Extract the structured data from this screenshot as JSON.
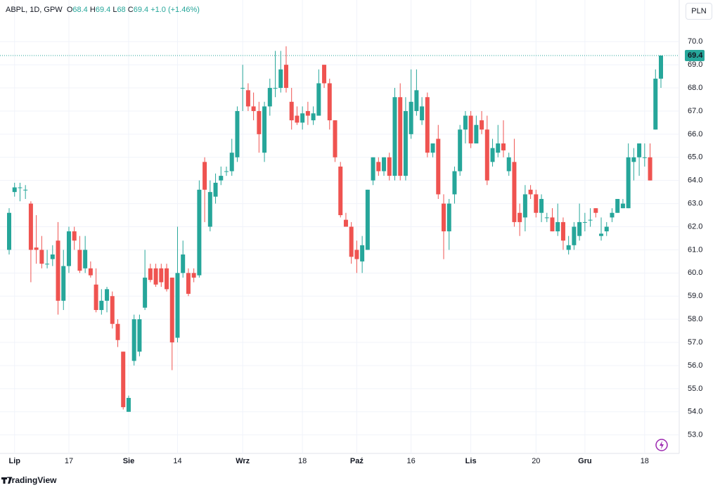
{
  "chart_data": {
    "type": "candlestick",
    "symbol": "ABPL, 1D, GPW",
    "ohlc_labels": [
      "O",
      "H",
      "L",
      "C"
    ],
    "ohlc_values": [
      68.4,
      69.4,
      68.0,
      69.4
    ],
    "change": "+1.0 (+1.46%)",
    "currency": "PLN",
    "brand": "TradingView",
    "last_price": 69.4,
    "up_color": "#26a69a",
    "down_color": "#ef5350",
    "grid": true,
    "categories": [
      null,
      "Lip",
      null,
      null,
      null,
      null,
      null,
      null,
      null,
      null,
      null,
      "17",
      null,
      null,
      null,
      null,
      null,
      null,
      null,
      null,
      null,
      null,
      "Sie",
      null,
      null,
      null,
      null,
      null,
      null,
      null,
      null,
      "14",
      null,
      null,
      null,
      null,
      null,
      null,
      null,
      null,
      null,
      null,
      null,
      "Wrz",
      null,
      null,
      null,
      null,
      null,
      null,
      null,
      null,
      null,
      null,
      "18",
      null,
      null,
      null,
      null,
      null,
      null,
      null,
      null,
      null,
      "Paź",
      null,
      null,
      null,
      null,
      null,
      null,
      null,
      null,
      null,
      "16",
      null,
      null,
      null,
      null,
      null,
      null,
      null,
      null,
      null,
      null,
      "Lis",
      null,
      null,
      null,
      null,
      null,
      null,
      null,
      null,
      null,
      null,
      null,
      "20",
      null,
      null,
      null,
      null,
      null,
      null,
      null,
      null,
      "Gru",
      null,
      null,
      null,
      null,
      null,
      null,
      null,
      null,
      null,
      null,
      "18",
      null,
      null,
      null
    ],
    "open": [
      61.0,
      63.5,
      63.7,
      63.6,
      63.0,
      61.1,
      61.0,
      60.4,
      60.6,
      61.4,
      58.8,
      60.3,
      61.8,
      61.0,
      60.2,
      60.2,
      59.5,
      58.4,
      58.8,
      59.0,
      57.8,
      56.6,
      54.0,
      56.2,
      56.6,
      58.5,
      60.2,
      60.2,
      60.2,
      60.2,
      59.8,
      57.2,
      60.0,
      60.0,
      60.0,
      59.9,
      64.8,
      62.0,
      63.3,
      64.0,
      64.4,
      64.4,
      65.0,
      68.0,
      67.9,
      67.2,
      67.0,
      65.2,
      67.2,
      68.0,
      68.0,
      69.0,
      67.4,
      66.8,
      66.5,
      67.0,
      66.6,
      66.8,
      69.0,
      68.2,
      66.6,
      64.6,
      62.3,
      62.0,
      61.0,
      60.5,
      61.0,
      64.0,
      64.8,
      64.4,
      65.0,
      64.2,
      67.6,
      64.2,
      66.0,
      67.0,
      66.6,
      67.6,
      65.2,
      65.8,
      63.0,
      61.8,
      63.4,
      64.4,
      66.2,
      66.8,
      65.6,
      66.6,
      66.2,
      64.8,
      65.2,
      65.6,
      64.4,
      64.8,
      62.6,
      62.4,
      63.6,
      63.4,
      62.6,
      62.4,
      62.4,
      61.8,
      62.2,
      61.0,
      61.2,
      61.6,
      62.2,
      62.3,
      62.8,
      61.6,
      61.8,
      62.4,
      62.6,
      62.8,
      62.8,
      64.8,
      65.0,
      65.0,
      65.0,
      66.2,
      68.4
    ],
    "high": [
      62.8,
      63.9,
      63.9,
      63.8,
      63.1,
      62.5,
      61.6,
      61.0,
      61.2,
      62.2,
      61.0,
      62.0,
      62.0,
      61.6,
      61.6,
      60.5,
      60.2,
      59.3,
      59.4,
      59.2,
      58.0,
      56.6,
      54.7,
      58.2,
      58.2,
      61.0,
      60.4,
      60.4,
      60.4,
      60.4,
      59.8,
      62.0,
      61.4,
      60.2,
      60.2,
      64.0,
      65.0,
      64.0,
      64.3,
      64.6,
      64.6,
      65.8,
      67.2,
      69.0,
      68.2,
      67.8,
      67.4,
      67.4,
      68.4,
      69.6,
      69.6,
      69.8,
      68.0,
      67.2,
      67.2,
      67.4,
      67.2,
      68.8,
      69.0,
      68.4,
      66.6,
      64.8,
      62.6,
      62.2,
      61.4,
      61.6,
      63.6,
      65.0,
      65.0,
      65.0,
      65.2,
      68.0,
      68.2,
      67.6,
      68.8,
      68.8,
      67.6,
      67.8,
      65.6,
      66.4,
      63.4,
      63.2,
      64.6,
      66.4,
      67.0,
      67.0,
      66.8,
      67.0,
      66.8,
      65.8,
      66.4,
      66.6,
      65.2,
      65.8,
      63.0,
      63.8,
      63.8,
      63.6,
      63.4,
      62.6,
      62.8,
      63.0,
      62.4,
      61.6,
      62.2,
      63.0,
      62.6,
      62.8,
      62.8,
      62.4,
      62.2,
      62.8,
      63.2,
      63.2,
      65.6,
      65.4,
      65.6,
      65.6,
      65.6,
      68.8,
      69.4
    ],
    "low": [
      60.8,
      63.3,
      63.1,
      63.2,
      59.6,
      60.4,
      60.2,
      60.2,
      60.3,
      58.2,
      58.4,
      60.0,
      61.0,
      60.0,
      60.0,
      59.8,
      58.3,
      58.2,
      58.3,
      57.6,
      56.8,
      54.1,
      54.0,
      56.0,
      56.4,
      58.4,
      59.6,
      59.4,
      59.4,
      59.2,
      55.8,
      57.0,
      59.8,
      59.0,
      59.6,
      59.8,
      62.2,
      61.8,
      63.0,
      63.8,
      64.2,
      64.2,
      64.8,
      67.0,
      67.0,
      66.6,
      65.2,
      64.8,
      66.8,
      67.6,
      67.8,
      67.8,
      66.2,
      66.4,
      66.2,
      66.4,
      66.4,
      66.8,
      68.0,
      66.2,
      64.8,
      62.4,
      62.0,
      60.4,
      60.0,
      60.0,
      61.0,
      63.8,
      64.2,
      64.2,
      64.0,
      64.0,
      64.0,
      64.0,
      65.8,
      66.8,
      66.4,
      65.0,
      65.0,
      63.2,
      60.6,
      61.0,
      63.0,
      64.2,
      65.6,
      65.4,
      65.6,
      66.0,
      63.8,
      64.6,
      65.0,
      65.0,
      64.2,
      62.0,
      61.6,
      61.8,
      63.2,
      62.4,
      62.2,
      62.2,
      61.8,
      61.6,
      61.0,
      60.8,
      61.0,
      61.4,
      61.8,
      62.0,
      62.4,
      61.4,
      61.6,
      62.2,
      62.6,
      62.8,
      62.8,
      64.0,
      64.2,
      64.6,
      64.0,
      66.2,
      68.0
    ],
    "close": [
      62.6,
      63.7,
      63.7,
      63.6,
      61.0,
      61.0,
      60.4,
      60.4,
      60.8,
      58.8,
      60.3,
      61.8,
      61.4,
      60.1,
      61.0,
      59.9,
      58.4,
      58.8,
      59.3,
      57.8,
      57.1,
      54.2,
      54.6,
      58.0,
      58.0,
      59.8,
      59.7,
      59.5,
      59.6,
      59.3,
      57.0,
      60.0,
      60.8,
      59.1,
      59.8,
      63.6,
      63.6,
      63.5,
      63.9,
      64.2,
      64.4,
      65.2,
      67.0,
      68.0,
      67.2,
      67.0,
      66.0,
      67.2,
      68.0,
      68.0,
      68.8,
      68.0,
      66.6,
      66.5,
      66.9,
      66.8,
      66.9,
      68.2,
      68.2,
      66.6,
      65.0,
      62.5,
      62.0,
      60.7,
      60.6,
      61.2,
      63.6,
      65.0,
      64.4,
      65.0,
      64.2,
      67.6,
      64.2,
      67.0,
      67.4,
      67.9,
      67.2,
      65.2,
      65.6,
      63.4,
      61.8,
      63.0,
      64.4,
      66.2,
      66.8,
      65.6,
      66.4,
      66.2,
      64.0,
      65.4,
      65.6,
      65.3,
      65.0,
      62.2,
      62.2,
      63.4,
      63.4,
      62.6,
      63.2,
      62.4,
      61.8,
      62.2,
      61.4,
      61.2,
      62.0,
      62.2,
      62.2,
      62.3,
      62.6,
      61.7,
      62.0,
      62.6,
      63.2,
      63.0,
      65.0,
      65.0,
      65.6,
      65.0,
      64.0,
      68.4,
      69.4
    ],
    "ylim": [
      52.2,
      71.8
    ],
    "yticks": [
      {
        "value": 53,
        "label": "53.0"
      },
      {
        "value": 54,
        "label": "54.0"
      },
      {
        "value": 55,
        "label": "55.0"
      },
      {
        "value": 56,
        "label": "56.0"
      },
      {
        "value": 57,
        "label": "57.0"
      },
      {
        "value": 58,
        "label": "58.0"
      },
      {
        "value": 59,
        "label": "59.0"
      },
      {
        "value": 60,
        "label": "60.0"
      },
      {
        "value": 61,
        "label": "61.0"
      },
      {
        "value": 62,
        "label": "62.0"
      },
      {
        "value": 63,
        "label": "63.0"
      },
      {
        "value": 64,
        "label": "64.0"
      },
      {
        "value": 65,
        "label": "65.0"
      },
      {
        "value": 66,
        "label": "66.0"
      },
      {
        "value": 67,
        "label": "67.0"
      },
      {
        "value": 68,
        "label": "68.0"
      },
      {
        "value": 69,
        "label": "69.0"
      },
      {
        "value": 70,
        "label": "70.0"
      }
    ]
  }
}
